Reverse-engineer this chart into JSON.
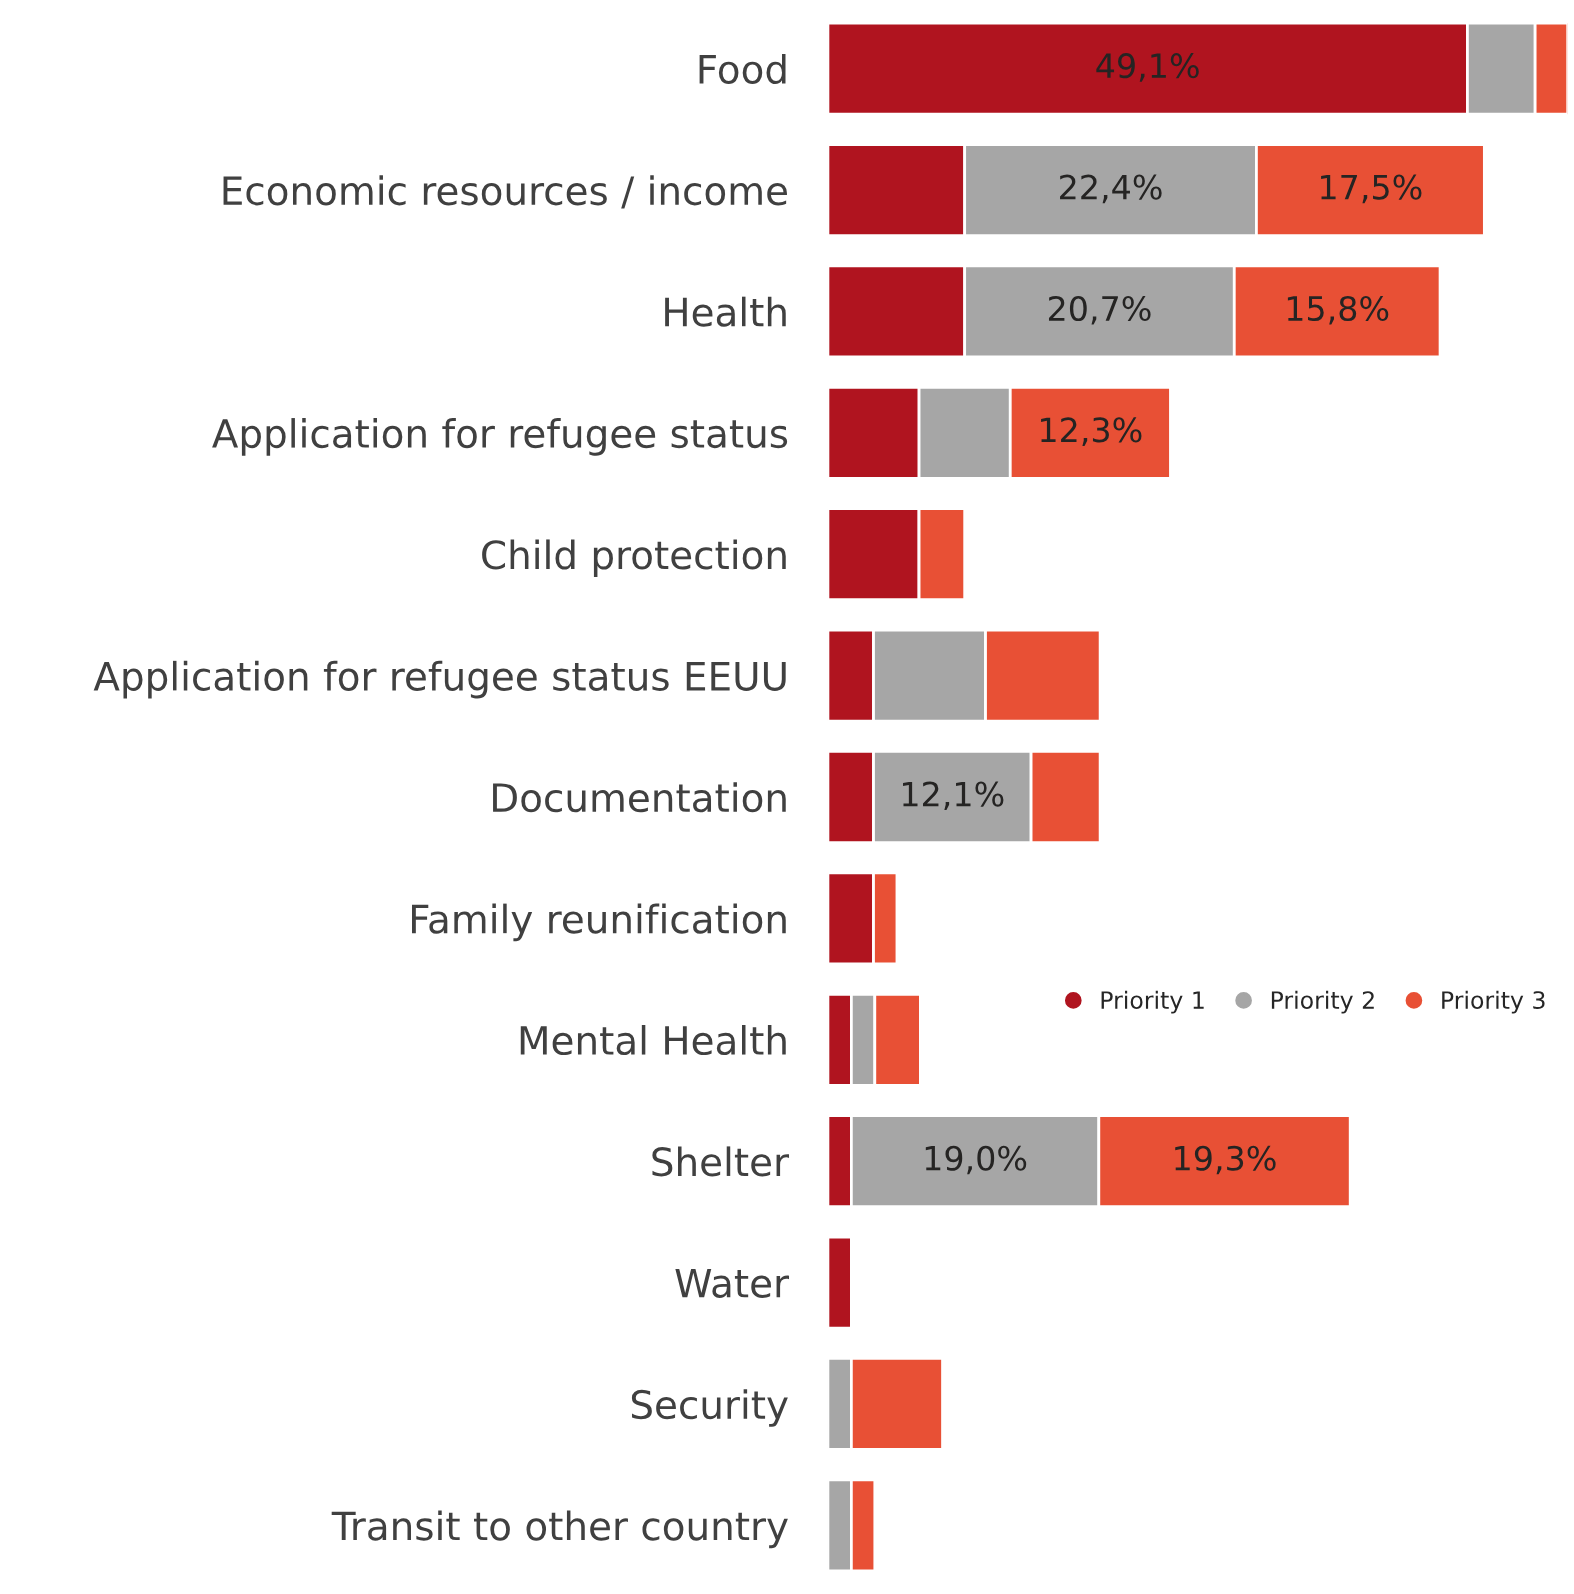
{
  "chart_data": {
    "type": "bar",
    "orientation": "horizontal",
    "stacked": true,
    "legend": "right",
    "categories": [
      "Food",
      "Economic resources / income",
      "Health",
      "Application for refugee status",
      "Child protection",
      "Application for refugee status EEUU",
      "Documentation",
      "Family reunification",
      "Mental Health",
      "Shelter",
      "Water",
      "Security",
      "Transit to other country"
    ],
    "series": [
      {
        "name": "Priority 1",
        "color": "#b0141f",
        "values": [
          49.1,
          10.5,
          10.5,
          7.0,
          7.0,
          3.5,
          3.5,
          3.5,
          1.8,
          1.8,
          1.8,
          null,
          null
        ],
        "value_labels": [
          "49,1%",
          null,
          null,
          null,
          null,
          null,
          null,
          null,
          null,
          null,
          null,
          null,
          null
        ]
      },
      {
        "name": "Priority 2",
        "color": "#a6a6a6",
        "values": [
          5.2,
          22.4,
          20.7,
          7.0,
          null,
          8.6,
          12.1,
          null,
          1.8,
          19.0,
          null,
          1.8,
          1.8
        ],
        "value_labels": [
          null,
          "22,4%",
          "20,7%",
          null,
          null,
          null,
          "12,1%",
          null,
          null,
          "19,0%",
          null,
          null,
          null
        ]
      },
      {
        "name": "Priority 3",
        "color": "#e85035",
        "values": [
          2.5,
          17.5,
          15.8,
          12.3,
          3.5,
          8.8,
          5.3,
          1.8,
          3.5,
          19.3,
          null,
          7.0,
          1.8
        ],
        "value_labels": [
          null,
          "17,5%",
          "15,8%",
          "12,3%",
          null,
          null,
          null,
          null,
          null,
          "19,3%",
          null,
          null,
          null
        ]
      }
    ]
  }
}
